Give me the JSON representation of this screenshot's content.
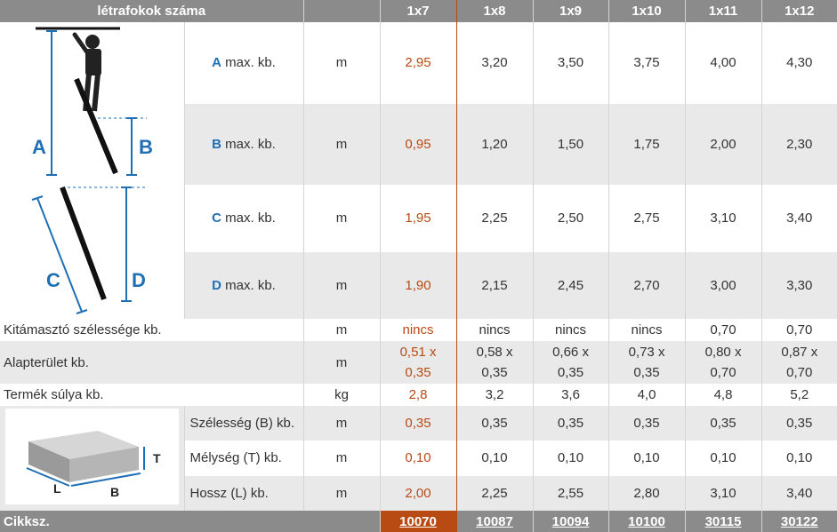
{
  "header": {
    "title": "létrafokok száma",
    "unit": "",
    "cols": [
      "1x7",
      "1x8",
      "1x9",
      "1x10",
      "1x11",
      "1x12"
    ]
  },
  "ladder_rows": [
    {
      "letter": "A",
      "label": "max. kb.",
      "unit": "m",
      "values": [
        "2,95",
        "3,20",
        "3,50",
        "3,75",
        "4,00",
        "4,30"
      ]
    },
    {
      "letter": "B",
      "label": "max. kb.",
      "unit": "m",
      "values": [
        "0,95",
        "1,20",
        "1,50",
        "1,75",
        "2,00",
        "2,30"
      ]
    },
    {
      "letter": "C",
      "label": "max. kb.",
      "unit": "m",
      "values": [
        "1,95",
        "2,25",
        "2,50",
        "2,75",
        "3,10",
        "3,40"
      ]
    },
    {
      "letter": "D",
      "label": "max. kb.",
      "unit": "m",
      "values": [
        "1,90",
        "2,15",
        "2,45",
        "2,70",
        "3,00",
        "3,30"
      ]
    }
  ],
  "ladder_figure": {
    "labels": [
      "A",
      "B",
      "C",
      "D"
    ]
  },
  "support": {
    "label": "Kitámasztó szélessége kb.",
    "unit": "m",
    "values": [
      "nincs",
      "nincs",
      "nincs",
      "nincs",
      "0,70",
      "0,70"
    ]
  },
  "area": {
    "label": "Alapterület kb.",
    "unit": "m",
    "values": [
      [
        "0,51 x",
        "0,35"
      ],
      [
        "0,58 x",
        "0,35"
      ],
      [
        "0,66 x",
        "0,35"
      ],
      [
        "0,73 x",
        "0,35"
      ],
      [
        "0,80 x",
        "0,70"
      ],
      [
        "0,87 x",
        "0,70"
      ]
    ]
  },
  "weight": {
    "label": "Termék súlya kb.",
    "unit": "kg",
    "values": [
      "2,8",
      "3,2",
      "3,6",
      "4,0",
      "4,8",
      "5,2"
    ]
  },
  "box_figure": {
    "labels": [
      "T",
      "L",
      "B"
    ]
  },
  "pack_rows": [
    {
      "label": "Szélesség (B) kb.",
      "unit": "m",
      "values": [
        "0,35",
        "0,35",
        "0,35",
        "0,35",
        "0,35",
        "0,35"
      ]
    },
    {
      "label": "Mélység (T) kb.",
      "unit": "m",
      "values": [
        "0,10",
        "0,10",
        "0,10",
        "0,10",
        "0,10",
        "0,10"
      ]
    },
    {
      "label": "Hossz (L) kb.",
      "unit": "m",
      "values": [
        "2,00",
        "2,25",
        "2,55",
        "2,80",
        "3,10",
        "3,40"
      ]
    }
  ],
  "footer": {
    "label": "Cikksz.",
    "codes": [
      "10070",
      "10087",
      "10094",
      "10100",
      "30115",
      "30122"
    ]
  },
  "colors": {
    "header_bg": "#8b8b8b",
    "highlight": "#b84a14",
    "letter": "#1f6fb5",
    "stripe": "#e9e9e9"
  }
}
